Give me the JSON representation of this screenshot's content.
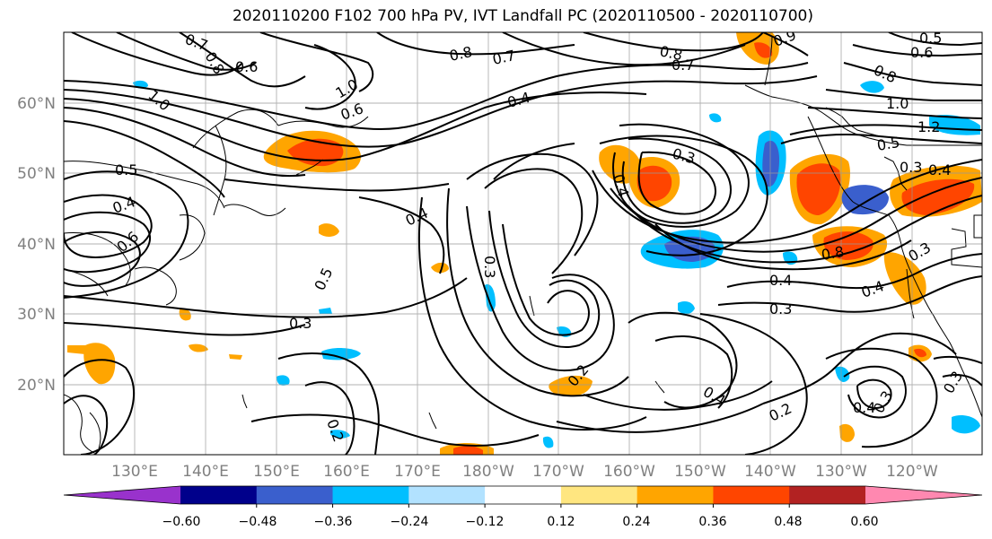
{
  "title": "2020110200 F102 700 hPa PV, IVT Landfall PC (2020110500 - 2020110700)",
  "map": {
    "lat_labels": [
      "60°N",
      "50°N",
      "40°N",
      "30°N",
      "20°N"
    ],
    "lon_labels": [
      "130°E",
      "140°E",
      "150°E",
      "160°E",
      "170°E",
      "180°W",
      "170°W",
      "160°W",
      "150°W",
      "140°W",
      "130°W",
      "120°W"
    ],
    "contour_labels": [
      "0.7",
      "0.8",
      "0.6",
      "0.8",
      "0.7",
      "0.8",
      "0.7",
      "0.5",
      "0.9",
      "0.6",
      "1.0",
      "1.0",
      "0.4",
      "0.8",
      "1.0",
      "1.2",
      "0.5",
      "0.4",
      "0.6",
      "0.5",
      "0.3",
      "0.6",
      "0.3",
      "0.4",
      "0.4",
      "0.5",
      "0.3",
      "0.4",
      "0.8",
      "0.3",
      "0.4",
      "0.3",
      "0.4",
      "0.3",
      "0.2",
      "0.4",
      "0.2",
      "0.4",
      "0.3",
      "0.2",
      "0.3"
    ]
  },
  "colorbar": {
    "ticks": [
      "−0.60",
      "−0.48",
      "−0.36",
      "−0.24",
      "−0.12",
      "0.12",
      "0.24",
      "0.36",
      "0.48",
      "0.60"
    ],
    "colors": [
      "#9932cc",
      "#00008b",
      "#3a5fcd",
      "#00bfff",
      "#b2e2ff",
      "#ffffff",
      "#ffe680",
      "#ffa500",
      "#ff4500",
      "#b22222",
      "#ff88b0"
    ]
  }
}
